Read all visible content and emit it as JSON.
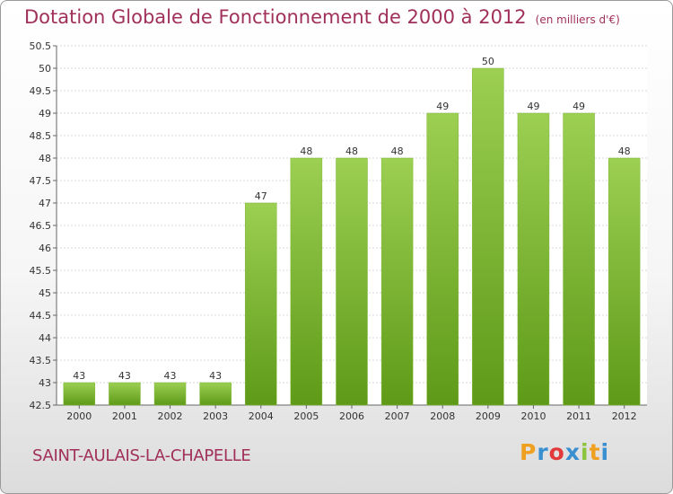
{
  "header": {
    "title": "Dotation Globale de Fonctionnement de 2000 à 2012",
    "units": "(en milliers d'€)"
  },
  "footer": {
    "commune": "SAINT-AULAIS-LA-CHAPELLE",
    "brand": "Proxiti"
  },
  "colors": {
    "title": "#a0305a",
    "bar_top": "#9ccf52",
    "bar_bottom": "#5e9a18",
    "grid": "#d9d9d9"
  },
  "chart_data": {
    "type": "bar",
    "title": "Dotation Globale de Fonctionnement de 2000 à 2012",
    "subtitle": "(en milliers d'€)",
    "xlabel": "",
    "ylabel": "",
    "categories": [
      "2000",
      "2001",
      "2002",
      "2003",
      "2004",
      "2005",
      "2006",
      "2007",
      "2008",
      "2009",
      "2010",
      "2011",
      "2012"
    ],
    "values": [
      43,
      43,
      43,
      43,
      47,
      48,
      48,
      48,
      49,
      50,
      49,
      49,
      48
    ],
    "ylim": [
      42.5,
      50.5
    ],
    "yticks": [
      "42.5",
      "43",
      "43.5",
      "44",
      "44.5",
      "45",
      "45.5",
      "46",
      "46.5",
      "47",
      "47.5",
      "48",
      "48.5",
      "49",
      "49.5",
      "50",
      "50.5"
    ],
    "grid": true
  }
}
